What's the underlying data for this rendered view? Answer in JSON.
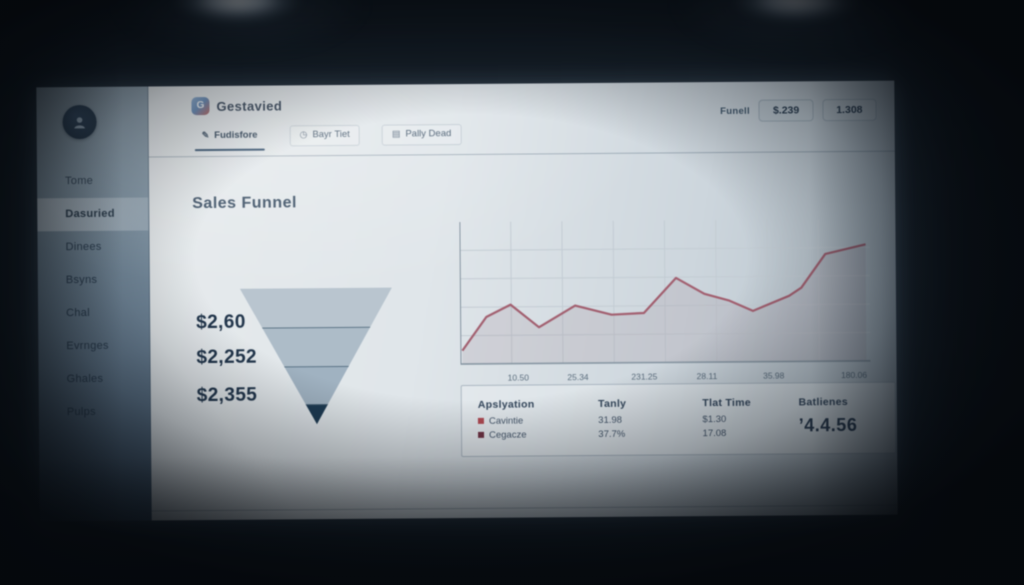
{
  "window": {
    "bg_color": "#0b1117",
    "accent_dark": "#1d3a52",
    "line_color": "#a25f6f"
  },
  "sidebar": {
    "avatar_icon": "user-avatar-icon",
    "items": [
      {
        "label": "Tome",
        "selected": false
      },
      {
        "label": "Dasuried",
        "selected": true
      },
      {
        "label": "Dinees",
        "selected": false
      },
      {
        "label": "Bsyns",
        "selected": false
      },
      {
        "label": "Chal",
        "selected": false
      },
      {
        "label": "Evrnges",
        "selected": false
      },
      {
        "label": "Ghales",
        "selected": false
      },
      {
        "label": "Pulps",
        "selected": false
      }
    ]
  },
  "header": {
    "app_name": "Gestavied",
    "logo_letter": "G",
    "tabs": [
      {
        "icon": "pen-icon",
        "glyph": "✎",
        "label": "Fudisfore",
        "active": true
      },
      {
        "icon": "clock-icon",
        "glyph": "◷",
        "label": "Bayr Tiet",
        "active": false
      },
      {
        "icon": "list-icon",
        "glyph": "▤",
        "label": "Pally Dead",
        "active": false
      }
    ],
    "funnel_label": "Funell",
    "stat_buttons": [
      "$.239",
      "1.308"
    ]
  },
  "main": {
    "section_title": "Sales Funnel",
    "funnel": {
      "labels": [
        "$2,60",
        "$2,252",
        "$2,355"
      ],
      "segments": [
        {
          "color": "#b9c5cf",
          "height_pct": 29
        },
        {
          "color": "#adbcc8",
          "height_pct": 28
        },
        {
          "color": "#a0b2c1",
          "height_pct": 28
        },
        {
          "color": "#1d3a52",
          "height_pct": 15
        }
      ]
    }
  },
  "chart_data": {
    "type": "line",
    "title": "",
    "xlabel": "",
    "ylabel": "",
    "grid": true,
    "legend": "none",
    "ylim": [
      0,
      100
    ],
    "x_tick_labels": [
      "10.50",
      "25.34",
      "231.25",
      "28.11",
      "35.98",
      "180.06"
    ],
    "x_tick_pos_pct": [
      14,
      28.5,
      44.6,
      59.8,
      76,
      95.5
    ],
    "points": [
      [
        0,
        10
      ],
      [
        6,
        35
      ],
      [
        12,
        44
      ],
      [
        19,
        27
      ],
      [
        28,
        43
      ],
      [
        37,
        36
      ],
      [
        45,
        37
      ],
      [
        53,
        63
      ],
      [
        60,
        51
      ],
      [
        66,
        46
      ],
      [
        72,
        38
      ],
      [
        81,
        49
      ],
      [
        84,
        55
      ],
      [
        90,
        80
      ],
      [
        100,
        87
      ]
    ],
    "line_color": "#a25f6f",
    "fill_color": "rgba(141,117,133,0.16)"
  },
  "table": {
    "headers": [
      "Apslyation",
      "Tanly",
      "Tlat Time",
      "Batlienes"
    ],
    "rows": [
      {
        "bullet_color": "#b04a52",
        "label": "Cavintie",
        "tanly": "31.98",
        "tlat_time": "$1.30"
      },
      {
        "bullet_color": "#6e3243",
        "label": "Cegacze",
        "tanly": "37.7%",
        "tlat_time": "17.08"
      }
    ],
    "big_value": "’4.4.56"
  }
}
